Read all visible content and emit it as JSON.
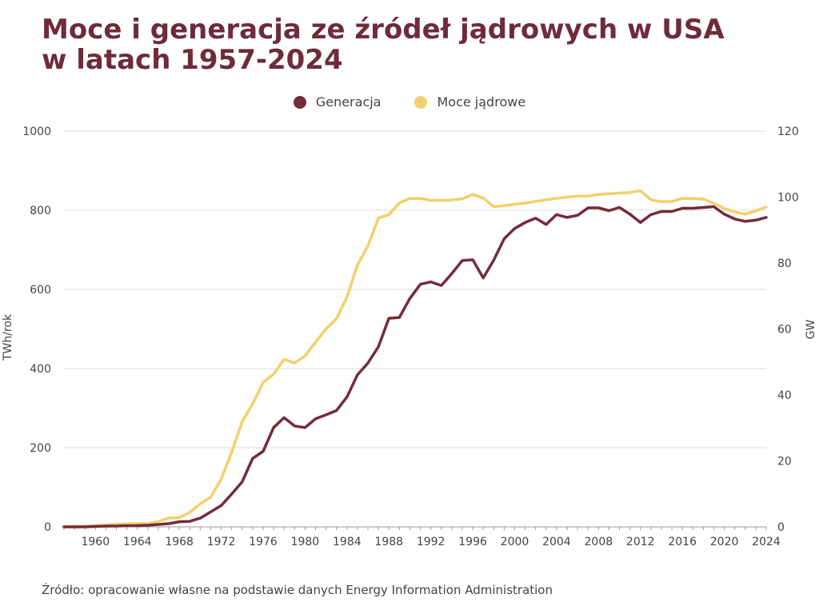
{
  "title_lines": [
    "Moce i generacja ze źródeł jądrowych w USA",
    "w latach 1957-2024"
  ],
  "source": "Źródło: opracowanie własne na podstawie danych Energy Information Administration",
  "colors": {
    "title": "#6e2b39",
    "generation": "#742c39",
    "capacity": "#f2d06b",
    "grid": "#dddddd",
    "axis_text": "#444444"
  },
  "chart_data": {
    "type": "line",
    "title": "Moce i generacja ze źródeł jądrowych w USA w latach 1957-2024",
    "legend_position": "top-center",
    "grid": true,
    "x": [
      1957,
      1958,
      1959,
      1960,
      1961,
      1962,
      1963,
      1964,
      1965,
      1966,
      1967,
      1968,
      1969,
      1970,
      1971,
      1972,
      1973,
      1974,
      1975,
      1976,
      1977,
      1978,
      1979,
      1980,
      1981,
      1982,
      1983,
      1984,
      1985,
      1986,
      1987,
      1988,
      1989,
      1990,
      1991,
      1992,
      1993,
      1994,
      1995,
      1996,
      1997,
      1998,
      1999,
      2000,
      2001,
      2002,
      2003,
      2004,
      2005,
      2006,
      2007,
      2008,
      2009,
      2010,
      2011,
      2012,
      2013,
      2014,
      2015,
      2016,
      2017,
      2018,
      2019,
      2020,
      2021,
      2022,
      2023,
      2024
    ],
    "x_ticks": [
      1960,
      1964,
      1968,
      1972,
      1976,
      1980,
      1984,
      1988,
      1992,
      1996,
      2000,
      2004,
      2008,
      2012,
      2016,
      2020,
      2024
    ],
    "xlim": [
      1957,
      2024
    ],
    "y_left": {
      "label": "TWh/rok",
      "lim": [
        0,
        1000
      ],
      "ticks": [
        0,
        200,
        400,
        600,
        800,
        1000
      ]
    },
    "y_right": {
      "label": "GW",
      "lim": [
        0,
        120
      ],
      "ticks": [
        0,
        20,
        40,
        60,
        80,
        100,
        120
      ]
    },
    "series": [
      {
        "name": "Generacja",
        "axis": "left",
        "values": [
          0,
          0,
          0,
          1,
          2,
          2,
          3,
          3,
          4,
          6,
          8,
          13,
          14,
          22,
          38,
          54,
          83,
          114,
          173,
          191,
          251,
          276,
          255,
          251,
          273,
          283,
          294,
          328,
          384,
          414,
          455,
          527,
          529,
          577,
          613,
          619,
          610,
          640,
          673,
          675,
          629,
          674,
          728,
          754,
          769,
          780,
          764,
          789,
          782,
          787,
          806,
          806,
          799,
          807,
          790,
          769,
          789,
          797,
          797,
          805,
          805,
          807,
          809,
          790,
          778,
          772,
          775,
          782
        ]
      },
      {
        "name": "Moce jądrowe",
        "axis": "right",
        "values": [
          0.1,
          0.2,
          0.2,
          0.4,
          0.5,
          0.8,
          0.9,
          1.0,
          1.0,
          1.6,
          2.7,
          2.8,
          4.4,
          7.0,
          9.0,
          14.5,
          22.7,
          31.9,
          37.3,
          43.8,
          46.3,
          50.8,
          49.7,
          51.8,
          56.0,
          60.0,
          63.1,
          69.7,
          79.4,
          85.2,
          93.6,
          94.7,
          98.2,
          99.6,
          99.6,
          99.0,
          99.0,
          99.1,
          99.5,
          100.8,
          99.7,
          97.1,
          97.4,
          97.8,
          98.2,
          98.7,
          99.2,
          99.6,
          100.0,
          100.3,
          100.3,
          100.8,
          101.0,
          101.2,
          101.4,
          101.9,
          99.2,
          98.6,
          98.7,
          99.6,
          99.6,
          99.4,
          98.1,
          96.5,
          95.5,
          94.8,
          95.8,
          97.0
        ]
      }
    ]
  }
}
